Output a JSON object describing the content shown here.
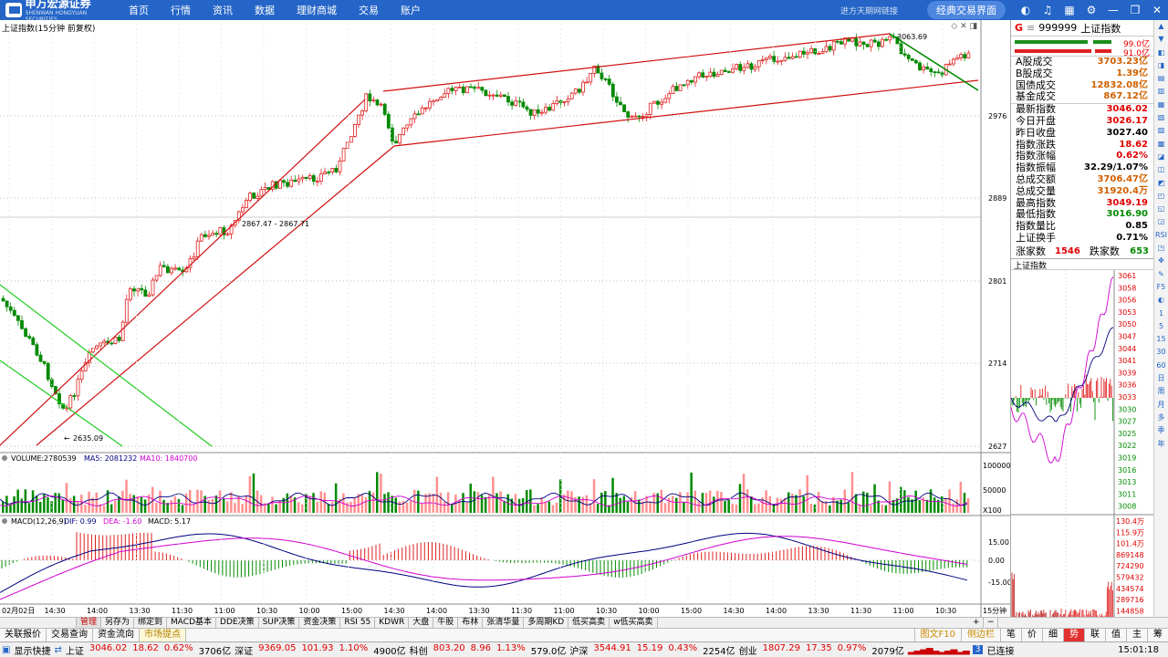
{
  "topbar": {
    "brand": "申万宏源证券",
    "brand_en": "SHENWAN HONGYUAN SECURITIES",
    "menu": [
      "首页",
      "行情",
      "资讯",
      "数据",
      "理财商城",
      "交易",
      "账户"
    ],
    "hint": "进方天期网链接",
    "classic_button": "经典交易界面",
    "icons": [
      "skin-icon",
      "headset-icon",
      "grid-icon",
      "settings-icon",
      "minimize-icon",
      "restore-icon",
      "close-icon"
    ]
  },
  "chart": {
    "title": "上证指数(15分钟 前复权)",
    "price_ticks": [
      "2976",
      "2889",
      "2801",
      "2714",
      "2627"
    ],
    "annotations": {
      "high": "3063.69",
      "low": "2635.09",
      "range": "2867.47 - 2867.71"
    },
    "volume_header": {
      "label": "VOLUME:",
      "value": "2780539",
      "ma5": "MA5: 2081232",
      "ma10": "MA10: 1840700"
    },
    "volume_ticks": [
      "100000",
      "50000",
      "X100"
    ],
    "macd_header": {
      "label": "MACD(12,26,9)",
      "dif": "DIF: 0.99",
      "dea": "DEA: -1.60",
      "macd": "MACD: 5.17"
    },
    "macd_ticks": [
      "15.00",
      "0.00",
      "-15.00"
    ],
    "time_labels": [
      "02月02日",
      "14:30",
      "14:00",
      "13:30",
      "11:30",
      "11:00",
      "10:30",
      "10:00",
      "15:00",
      "14:30",
      "14:00",
      "13:30",
      "11:30",
      "11:00",
      "10:30",
      "10:00",
      "15:00",
      "14:30",
      "14:00",
      "13:30",
      "11:30",
      "11:00",
      "10:30"
    ],
    "period": "15分钟",
    "colors": {
      "up": "#e02020",
      "down": "#008a00",
      "channel_red": "#d01010",
      "channel_green": "#22cc22",
      "ma5": "#000080",
      "ma10": "#d000d0"
    }
  },
  "quote": {
    "code_prefix": "G",
    "code": "999999",
    "name": "上证指数",
    "bar_values": [
      "99.0亿",
      "91.0亿"
    ],
    "rows1": [
      {
        "label": "A股成交",
        "value": "3703.23亿",
        "color": "orange"
      },
      {
        "label": "B股成交",
        "value": "1.39亿",
        "color": "orange"
      },
      {
        "label": "国债成交",
        "value": "12832.08亿",
        "color": "orange"
      },
      {
        "label": "基金成交",
        "value": "867.12亿",
        "color": "orange"
      }
    ],
    "rows2": [
      {
        "label": "最新指数",
        "value": "3046.02",
        "color": "red"
      },
      {
        "label": "今日开盘",
        "value": "3026.17",
        "color": "red"
      },
      {
        "label": "昨日收盘",
        "value": "3027.40",
        "color": "black"
      },
      {
        "label": "指数涨跌",
        "value": "18.62",
        "color": "red"
      },
      {
        "label": "指数涨幅",
        "value": "0.62%",
        "color": "red"
      },
      {
        "label": "指数振幅",
        "value": "32.29/1.07%",
        "color": "black"
      },
      {
        "label": "总成交额",
        "value": "3706.47亿",
        "color": "orange"
      },
      {
        "label": "总成交量",
        "value": "31920.4万",
        "color": "orange"
      },
      {
        "label": "最高指数",
        "value": "3049.19",
        "color": "red"
      },
      {
        "label": "最低指数",
        "value": "3016.90",
        "color": "green"
      },
      {
        "label": "指数量比",
        "value": "0.85",
        "color": "black"
      },
      {
        "label": "上证换手",
        "value": "0.71%",
        "color": "black"
      }
    ],
    "up_label": "涨家数",
    "up_count": "1546",
    "down_label": "跌家数",
    "down_count": "653",
    "mini_title": "上证指数",
    "mini_ticks": [
      "3061",
      "3058",
      "3056",
      "3053",
      "3050",
      "3047",
      "3044",
      "3041",
      "3039",
      "3036",
      "3033",
      "3030",
      "3027",
      "3025",
      "3022",
      "3019",
      "3016",
      "3013",
      "3011",
      "3008"
    ],
    "mini_vol_ticks": [
      "130.4万",
      "115.9万",
      "101.4万",
      "869148",
      "724290",
      "579432",
      "434574",
      "289716",
      "144858"
    ]
  },
  "sidetools": [
    "▲",
    "▼",
    "◧",
    "◨",
    "▤",
    "▥",
    "▦",
    "▧",
    "▨",
    "▩",
    "◪",
    "◫",
    "◩",
    "◰",
    "◱",
    "◲",
    "RSI",
    "◳",
    "✥",
    "✎",
    "F5",
    "◐",
    "1",
    "5",
    "15",
    "30",
    "60",
    "日",
    "周",
    "月",
    "多",
    "季",
    "年"
  ],
  "tabs": [
    "管理",
    "另存为",
    "绑定到",
    "MACD基本",
    "DDE决策",
    "SUP决策",
    "资金决策",
    "RSI 55",
    "KDWR",
    "大盘",
    "牛股",
    "布林",
    "张清华量",
    "多周期KD",
    "低买高卖",
    "w低买高卖"
  ],
  "tabs_right": [
    "+",
    "−"
  ],
  "bottom_tabs": [
    "关联报价",
    "交易查询",
    "资金流向",
    "市场提点"
  ],
  "bottom_right": [
    "图文F10",
    "侧边栏",
    "笔",
    "价",
    "细",
    "势",
    "联",
    "值",
    "主",
    "筹"
  ],
  "status": {
    "show": "显示快捷",
    "items": [
      {
        "label": "上证",
        "value": "3046.02",
        "chg": "18.62",
        "pct": "0.62%",
        "amt": "3706亿"
      },
      {
        "label": "深证",
        "value": "9369.05",
        "chg": "101.93",
        "pct": "1.10%",
        "amt": "4900亿"
      },
      {
        "label": "科创",
        "value": "803.20",
        "chg": "8.96",
        "pct": "1.13%",
        "amt": "579.0亿"
      },
      {
        "label": "沪深",
        "value": "3544.91",
        "chg": "15.19",
        "pct": "0.43%",
        "amt": "2254亿"
      },
      {
        "label": "创业",
        "value": "1807.29",
        "chg": "17.35",
        "pct": "0.97%",
        "amt": "2079亿"
      }
    ],
    "connected": "已连接",
    "conn_num": "3",
    "time": "15:01:18"
  }
}
